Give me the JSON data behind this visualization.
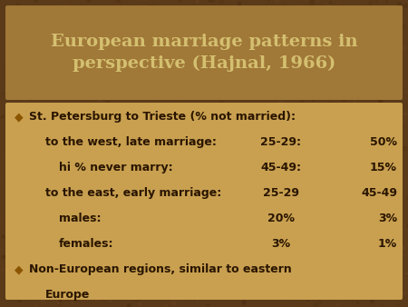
{
  "title_line1": "European marriage patterns in",
  "title_line2": "perspective (Hajnal, 1966)",
  "title_bg_color": "#A07838",
  "title_text_color": "#D4C070",
  "body_bg_color": "#C8A050",
  "outer_bg_color": "#5A3A18",
  "bullet_color": "#8B5500",
  "text_color": "#2A1500",
  "bullet_symbol": "◆",
  "lines": [
    {
      "indent": 0,
      "bullet": true,
      "text": "St. Petersburg to Trieste (% not married):",
      "col1": null,
      "col2": null
    },
    {
      "indent": 1,
      "bullet": false,
      "text": "to the west, late marriage:",
      "col1": "25-29:",
      "col2": "50%"
    },
    {
      "indent": 2,
      "bullet": false,
      "text": "hi % never marry:",
      "col1": "45-49:",
      "col2": "15%"
    },
    {
      "indent": 1,
      "bullet": false,
      "text": "to the east, early marriage:",
      "col1": "25-29",
      "col2": "45-49"
    },
    {
      "indent": 2,
      "bullet": false,
      "text": "males:",
      "col1": "20%",
      "col2": "3%"
    },
    {
      "indent": 2,
      "bullet": false,
      "text": "females:",
      "col1": "3%",
      "col2": "1%"
    },
    {
      "indent": 0,
      "bullet": true,
      "text": "Non-European regions, similar to eastern",
      "col1": null,
      "col2": null
    },
    {
      "indent": 1,
      "bullet": false,
      "text": "Europe",
      "col1": null,
      "col2": null
    }
  ],
  "figwidth": 4.5,
  "figheight": 3.38,
  "dpi": 100
}
